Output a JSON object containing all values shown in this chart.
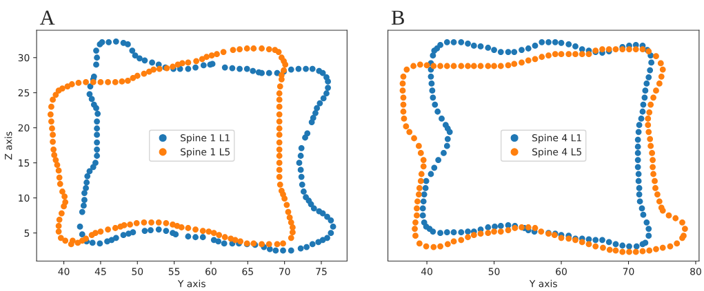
{
  "chart_data": [
    {
      "type": "scatter",
      "title": "A",
      "xlabel": "Y axis",
      "ylabel": "Z axis",
      "xlim": [
        36.3,
        78.5
      ],
      "ylim": [
        1,
        33.9
      ],
      "xticks": [
        40,
        45,
        50,
        55,
        60,
        65,
        70,
        75
      ],
      "yticks": [
        5,
        10,
        15,
        20,
        25,
        30
      ],
      "marker": "circle",
      "legend": "center",
      "grid": false,
      "series": [
        {
          "name": "Spine 1 L1",
          "color": "#1f77b4",
          "x": [
            44.5,
            44.4,
            44.9,
            45.2,
            46.1,
            47.1,
            48.1,
            48.7,
            49.3,
            49.7,
            50.3,
            51,
            52,
            52.9,
            53.8,
            54.9,
            55.8,
            56.9,
            57.9,
            59,
            59.9,
            60.2,
            61.9,
            62.9,
            63.9,
            64.9,
            65.7,
            66.5,
            66.9,
            67.9,
            69,
            69.9,
            70.9,
            71.9,
            72.9,
            73.8,
            74.7,
            75.2,
            75.7,
            75.9,
            75.9,
            75.7,
            75.3,
            74.8,
            74.4,
            74.2,
            73.9,
            73.7,
            73.1,
            72.8,
            72.3,
            72.2,
            72,
            72.2,
            72.3,
            72.4,
            72.6,
            72.9,
            73.3,
            73.6,
            74,
            74.7,
            75.2,
            75.8,
            76.3,
            76.6,
            76.3,
            75.8,
            75.2,
            74.6,
            73.8,
            73,
            72.2,
            70.9,
            69.8,
            68.8,
            68,
            67.2,
            66,
            64.9,
            63.8,
            62.9,
            61.8,
            61,
            60.4,
            58.9,
            57.9,
            56.9,
            55.2,
            54.8,
            53.9,
            52.9,
            51.8,
            51,
            49.4,
            48.8,
            48.1,
            47.1,
            46.5,
            45.9,
            44.9,
            43.9,
            43.1,
            42.5,
            42.2,
            42.5,
            42.7,
            42.8,
            42.8,
            43,
            43.1,
            43.2,
            43.5,
            44,
            44.3,
            44.5,
            44.5,
            44.5,
            44.5,
            44.5,
            44.5,
            44.6,
            44.4,
            44.1,
            43.8,
            43.5,
            43.6,
            44,
            44.1,
            44.4
          ],
          "values": [
            30,
            31,
            31.9,
            32.2,
            32.2,
            32.3,
            32.1,
            31.9,
            31,
            30.3,
            29.9,
            29.6,
            29.3,
            29,
            28.6,
            28.4,
            28.4,
            28.4,
            28.6,
            28.9,
            29,
            29.1,
            28.6,
            28.5,
            28.4,
            28.4,
            28.1,
            27.9,
            27.8,
            27.8,
            27.8,
            28,
            28.3,
            28.4,
            28.4,
            28.4,
            28.1,
            27.8,
            27.2,
            26.6,
            25.7,
            24.9,
            24.2,
            23.5,
            22.8,
            22.1,
            21.4,
            20.8,
            19.2,
            18.6,
            17.1,
            16,
            15,
            14,
            13,
            11.9,
            10.9,
            10.1,
            9.6,
            9.1,
            8.5,
            8.1,
            7.8,
            7.3,
            6.8,
            5.9,
            5,
            4.3,
            4,
            3.7,
            3.4,
            3,
            2.8,
            2.5,
            2.5,
            2.5,
            2.7,
            3,
            3.3,
            3.4,
            3.5,
            3.5,
            3.5,
            3.8,
            4,
            4.4,
            4.4,
            4.5,
            4.8,
            5,
            5.3,
            5.5,
            5.4,
            5.3,
            5.1,
            4.9,
            4.7,
            4.3,
            4,
            3.8,
            3.5,
            3.6,
            3.8,
            4.8,
            5.9,
            8,
            8.9,
            9.7,
            10.7,
            11.4,
            12.2,
            13.1,
            13.8,
            14.4,
            15,
            16,
            16.9,
            17.9,
            19,
            19.9,
            20.9,
            22,
            22.8,
            23.3,
            24.1,
            24.8,
            25.9,
            26.9,
            27.3,
            29
          ]
        },
        {
          "name": "Spine 1 L5",
          "color": "#ff7f0e",
          "x": [
            38.5,
            38.9,
            39.3,
            39.8,
            40.5,
            41.1,
            42,
            43,
            44,
            45,
            46,
            47,
            47.9,
            48.7,
            49.4,
            50,
            50.9,
            51.6,
            52.2,
            53,
            54,
            54.8,
            55.5,
            56.1,
            56.9,
            58,
            58.8,
            59.4,
            60.1,
            60.8,
            61.7,
            63,
            63.9,
            64.9,
            65.8,
            66.9,
            67.9,
            68.7,
            69.2,
            69.6,
            69.9,
            70.1,
            69.9,
            69.6,
            69.6,
            69.4,
            69.3,
            69.3,
            69.3,
            69.3,
            69.3,
            69.3,
            69.3,
            69.3,
            69.3,
            69.3,
            69.3,
            69.3,
            69.3,
            69.4,
            69.6,
            69.8,
            70,
            70.3,
            70.5,
            70.7,
            70.9,
            71.1,
            71.1,
            70.9,
            69.8,
            69,
            67.9,
            66.9,
            65.8,
            64.9,
            64,
            63.3,
            62.7,
            61.9,
            61.1,
            60.4,
            59.7,
            58.9,
            57.9,
            56.9,
            56,
            55.4,
            54.8,
            53.9,
            52.9,
            51.9,
            50.9,
            49.9,
            49,
            48.2,
            47.7,
            47,
            46,
            45,
            44.3,
            43.8,
            43,
            42.5,
            41.9,
            41.2,
            41,
            40.2,
            39.6,
            39.3,
            39.3,
            39.4,
            39.7,
            40,
            40.2,
            40.1,
            39.8,
            39.5,
            39.4,
            39.3,
            39.1,
            38.9,
            38.7,
            38.6,
            38.5,
            38.5,
            38.4,
            38.3,
            38.2,
            38.3
          ],
          "values": [
            24,
            24.7,
            25.3,
            25.6,
            25.9,
            26.2,
            26.4,
            26.5,
            26.5,
            26.5,
            26.5,
            26.5,
            26.6,
            26.7,
            27.1,
            27.4,
            27.7,
            28,
            28.3,
            28.4,
            28.5,
            28.7,
            29,
            29.2,
            29.3,
            29.5,
            29.8,
            30.1,
            30.3,
            30.5,
            30.8,
            31.1,
            31.2,
            31.3,
            31.3,
            31.3,
            31.2,
            31.1,
            30.8,
            30,
            29.5,
            29,
            28.2,
            27.5,
            26.9,
            25.9,
            24.9,
            24,
            23,
            21.9,
            20.9,
            19.9,
            19,
            17.9,
            16.9,
            16,
            15,
            14,
            13,
            11.9,
            11,
            10.5,
            9.9,
            9,
            8,
            7.2,
            6.5,
            5.8,
            5.1,
            4.3,
            3.5,
            3.4,
            3.4,
            3.4,
            3.5,
            3.5,
            3.8,
            4,
            4.2,
            4.4,
            4.7,
            5,
            5.2,
            5.3,
            5.5,
            5.7,
            5.8,
            6,
            6.2,
            6.4,
            6.5,
            6.5,
            6.5,
            6.4,
            6.2,
            6.1,
            5.9,
            5.7,
            5.5,
            5.2,
            5,
            4.7,
            4.2,
            3.9,
            3.6,
            3.9,
            3.4,
            3.9,
            4.3,
            5.2,
            6,
            6.9,
            7.8,
            8.8,
            9.4,
            10.2,
            10.9,
            12,
            12.9,
            13.9,
            14.7,
            15.4,
            16.1,
            16.9,
            18,
            19,
            19.9,
            20.9,
            21.9,
            23
          ]
        }
      ]
    },
    {
      "type": "scatter",
      "title": "B",
      "xlabel": "Y axis",
      "xlim": [
        34.2,
        80.5
      ],
      "ylim": [
        1,
        33.9
      ],
      "xticks": [
        40,
        50,
        60,
        70,
        80
      ],
      "tick_labels": "x",
      "marker": "circle",
      "legend": "center",
      "grid": false,
      "series": [
        {
          "name": "Spine 4 L1",
          "color": "#1f77b4",
          "x": [
            42,
            43,
            44,
            45.1,
            46.1,
            47,
            48,
            49.1,
            50,
            51,
            52.1,
            53,
            54.1,
            55.1,
            56.1,
            57.1,
            58.1,
            59.1,
            60,
            61.1,
            62.1,
            63.1,
            64.1,
            65.1,
            66.1,
            67.1,
            68.1,
            69.1,
            70.1,
            71.1,
            72.1,
            72.8,
            73.3,
            73.4,
            73.2,
            73,
            72.7,
            72.5,
            72.4,
            72.2,
            72.1,
            71.9,
            71.6,
            71.5,
            71.4,
            71.4,
            71.4,
            71.4,
            71.4,
            71.5,
            71.5,
            71.6,
            71.6,
            71.7,
            72,
            72.2,
            72.7,
            73,
            73,
            72.5,
            72.1,
            71.2,
            70.1,
            69.1,
            68.1,
            67.1,
            66.1,
            65.1,
            64.1,
            63.1,
            62.1,
            61.1,
            60,
            59.1,
            58.1,
            57,
            56,
            55.1,
            54.5,
            53.1,
            52.1,
            51,
            50.1,
            49.1,
            48,
            47,
            46.1,
            45.1,
            44,
            43,
            42,
            40.9,
            40.4,
            39.9,
            39.6,
            39.4,
            39.4,
            39.5,
            39.6,
            39.8,
            39.9,
            40.6,
            41.1,
            41.7,
            42.5,
            43,
            43.1,
            43.4,
            43.1,
            42.8,
            42.2,
            41.6,
            41.2,
            40.9,
            40.8,
            40.7,
            40.6,
            40.6,
            40.6,
            40.9,
            41.1,
            41.5
          ],
          "values": [
            31.8,
            32.2,
            32.2,
            32.2,
            32,
            31.7,
            31.6,
            31.4,
            31.1,
            30.8,
            30.8,
            30.8,
            31.1,
            31.3,
            31.7,
            32.2,
            32.2,
            32.2,
            32.1,
            31.9,
            31.6,
            31.2,
            31,
            30.8,
            30.7,
            30.9,
            null,
            31.5,
            31.7,
            31.8,
            31.7,
            31.1,
            30.3,
            29.3,
            28.2,
            27.2,
            26.3,
            25.3,
            24.3,
            23.3,
            22.3,
            21.3,
            20.4,
            19.4,
            18.3,
            17.3,
            16.4,
            15.4,
            14.4,
            13.4,
            12.4,
            11.4,
            10.5,
            9.5,
            8.5,
            7.6,
            6.5,
            5.6,
            4.6,
            3.6,
            3.4,
            3.1,
            3.1,
            3.2,
            3.4,
            3.7,
            4,
            4,
            4.1,
            4.2,
            4.2,
            4.6,
            4.7,
            4.9,
            5,
            null,
            5.2,
            5.4,
            5.7,
            6,
            6.1,
            6,
            5.9,
            5.8,
            5.5,
            5.2,
            5.2,
            5.1,
            5.1,
            5.1,
            5,
            5.2,
            5.6,
            5.9,
            6.5,
            7.5,
            8.5,
            9.5,
            10.5,
            11.4,
            12.4,
            13.4,
            14.3,
            15.4,
            16.4,
            17.4,
            18.4,
            19.4,
            19.9,
            20.4,
            21.3,
            22.3,
            23.3,
            24.3,
            25.3,
            26.3,
            27.3,
            28.3,
            29.2,
            30.3,
            31,
            31.3
          ]
        },
        {
          "name": "Spine 4 L5",
          "color": "#ff7f0e",
          "x": [
            37,
            38,
            39,
            40,
            41,
            42,
            43,
            44,
            45.1,
            46.1,
            47,
            48,
            49.1,
            50,
            51,
            52.1,
            53,
            54.1,
            55.1,
            56.1,
            57.1,
            58.1,
            59.1,
            60,
            61.1,
            62.1,
            63.1,
            64.1,
            65.1,
            66.1,
            67.1,
            68.1,
            69.1,
            70.1,
            71.1,
            72.1,
            73,
            74.1,
            74.8,
            75.1,
            74.9,
            74.6,
            74.1,
            73.7,
            73.3,
            73.1,
            72.9,
            72.9,
            73,
            73.2,
            73.3,
            73.5,
            73.6,
            73.6,
            73.7,
            73.9,
            74,
            74.3,
            74.6,
            74.9,
            75.1,
            76,
            77,
            78,
            78.4,
            78.2,
            78,
            77.2,
            76.2,
            75.1,
            74.1,
            73.1,
            72.1,
            71.1,
            70.1,
            69.1,
            68.1,
            67.2,
            66.2,
            65.1,
            64.1,
            63.1,
            62.1,
            61.1,
            60,
            59,
            58.1,
            57,
            56.1,
            55.1,
            54.1,
            53.1,
            52.1,
            51,
            50,
            49.1,
            48,
            47,
            46.1,
            45.1,
            44,
            43.1,
            42,
            41,
            39.9,
            38.9,
            38.3,
            38.2,
            38.3,
            38.5,
            38.5,
            38.6,
            38.8,
            38.9,
            39.1,
            39.2,
            39.5,
            39.5,
            39.1,
            38.8,
            38.1,
            37.4,
            36.9,
            36.6,
            36.5,
            36.5,
            36.5,
            36.4,
            36.4,
            36.5
          ],
          "values": [
            28.3,
            28.8,
            29,
            28.9,
            28.8,
            28.8,
            28.8,
            28.8,
            28.8,
            28.8,
            28.8,
            28.8,
            28.8,
            28.8,
            28.8,
            28.9,
            29.1,
            29.3,
            29.6,
            29.8,
            30.1,
            30.3,
            30.5,
            30.5,
            30.5,
            30.5,
            30.5,
            30.5,
            31,
            31.2,
            31.2,
            31.2,
            31.2,
            31.2,
            31.2,
            31.2,
            30.9,
            30.2,
            29.2,
            28.3,
            27.3,
            26.3,
            25.3,
            24.3,
            23.3,
            22.2,
            21.3,
            20.4,
            19.4,
            18.4,
            17.4,
            16.4,
            15.4,
            14.4,
            13.4,
            12.4,
            11.4,
            10.5,
            9.5,
            8.6,
            8.2,
            7.5,
            7.1,
            6.5,
            5.6,
            4.6,
            4.3,
            3.5,
            3.1,
            2.9,
            2.7,
            2.5,
            2.4,
            2.3,
            2.3,
            2.3,
            2.5,
            2.6,
            2.9,
            3.1,
            3.4,
            3.7,
            4,
            4.2,
            4.3,
            4.7,
            4.9,
            5.2,
            5.7,
            5.8,
            5.8,
            5.7,
            5.4,
            5.2,
            5.2,
            5,
            4.9,
            4.7,
            4.4,
            4,
            3.8,
            3.4,
            3.1,
            3,
            3.1,
            3.5,
            4.6,
            5.6,
            6.5,
            7.5,
            8.5,
            9.5,
            10.5,
            11.4,
            12.4,
            13.4,
            14.5,
            15.4,
            16.4,
            17.4,
            18.5,
            19.4,
            20.2,
            21.3,
            22.3,
            23.3,
            24.3,
            25.3,
            26.3,
            27.3
          ]
        }
      ]
    }
  ]
}
